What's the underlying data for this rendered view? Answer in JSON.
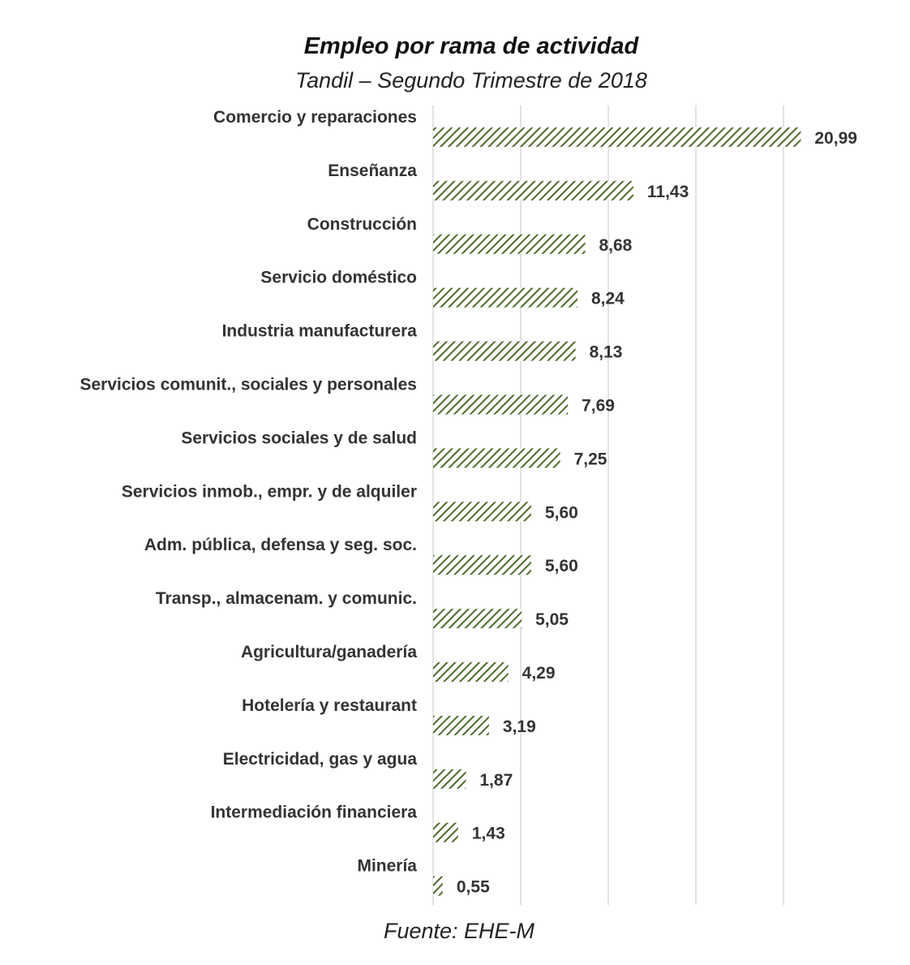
{
  "chart_data": {
    "type": "bar",
    "orientation": "horizontal",
    "title": "Empleo por rama de actividad",
    "subtitle": "Tandil – Segundo Trimestre de 2018",
    "source": "Fuente: EHE-M",
    "categories": [
      "Comercio y reparaciones",
      "Enseñanza",
      "Construcción",
      "Servicio doméstico",
      "Industria manufacturera",
      "Servicios comunit., sociales y personales",
      "Servicios sociales y de salud",
      "Servicios inmob., empr. y de alquiler",
      "Adm. pública, defensa y seg. soc.",
      "Transp., almacenam. y comunic.",
      "Agricultura/ganadería",
      "Hotelería y restaurant",
      "Electricidad, gas y agua",
      "Intermediación financiera",
      "Minería"
    ],
    "values": [
      20.99,
      11.43,
      8.68,
      8.24,
      8.13,
      7.69,
      7.25,
      5.6,
      5.6,
      5.05,
      4.29,
      3.19,
      1.87,
      1.43,
      0.55
    ],
    "value_labels": [
      "20,99",
      "11,43",
      "8,68",
      "8,24",
      "8,13",
      "7,69",
      "7,25",
      "5,60",
      "5,60",
      "5,05",
      "4,29",
      "3,19",
      "1,87",
      "1,43",
      "0,55"
    ],
    "xlim": [
      0,
      25
    ],
    "grid": true,
    "legend": "none",
    "bar_color": "#4f6b2b",
    "bar_pattern": "diagonal-hatch"
  }
}
